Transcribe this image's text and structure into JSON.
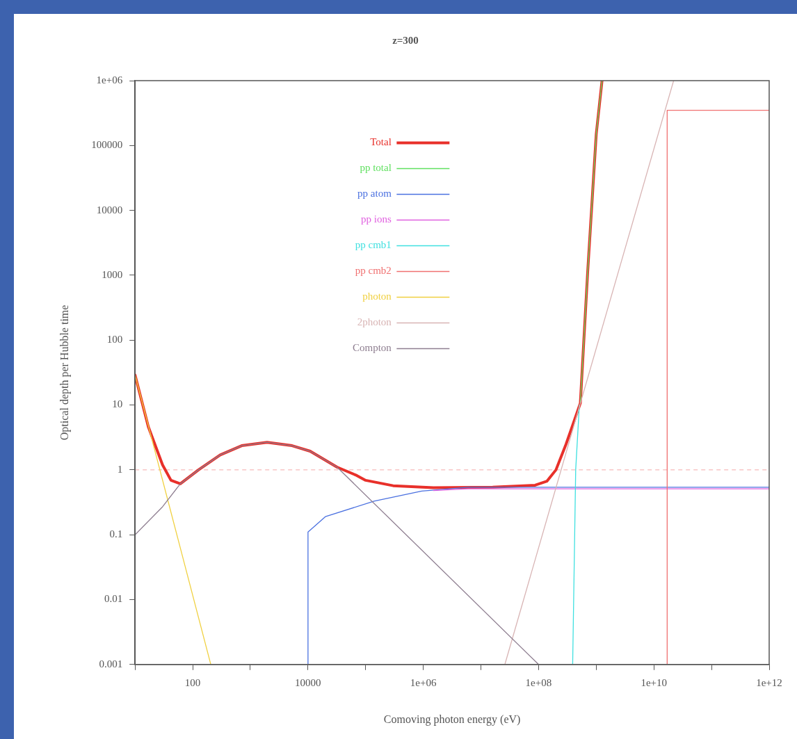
{
  "chart_data": {
    "type": "line",
    "title": "z=300",
    "xlabel": "Comoving photon energy (eV)",
    "ylabel": "Optical depth per Hubble time",
    "log": "xy",
    "grid": false,
    "legend": "top",
    "marker": "none",
    "line_style": "solid",
    "xlim": [
      10,
      1000000000000
    ],
    "ylim": [
      0.001,
      1000000
    ],
    "xticks": [
      {
        "value": 10,
        "label": null
      },
      100,
      {
        "value": 1000,
        "label": null
      },
      10000,
      {
        "value": 100000,
        "label": null
      },
      {
        "value": 1000000,
        "label": "1e+06"
      },
      {
        "value": 10000000,
        "label": null
      },
      {
        "value": 100000000,
        "label": "1e+08"
      },
      {
        "value": 1000000000,
        "label": null
      },
      {
        "value": 10000000000,
        "label": "1e+10"
      },
      {
        "value": 100000000000,
        "label": null
      },
      {
        "value": 1000000000000,
        "label": "1e+12"
      }
    ],
    "yticks": [
      0.001,
      0.01,
      0.1,
      1,
      10,
      100,
      1000,
      10000,
      100000,
      {
        "value": 1000000,
        "label": "1e+06"
      }
    ],
    "ref_lines": [
      {
        "axis": "y",
        "value": 1,
        "color": "#f4a8a8",
        "line_style": "dashed"
      }
    ],
    "series": [
      {
        "name": "Total",
        "color": "#e8302a",
        "x": [
          10,
          17,
          30,
          42,
          61,
          126,
          300,
          708,
          1950,
          5300,
          10900,
          32000,
          70000,
          100000,
          300000,
          1500000,
          16000000,
          87000000,
          140000000,
          200000000,
          300000000,
          530000000,
          710000000,
          1000000000,
          1260000000
        ],
        "values": [
          29,
          4.6,
          1.19,
          0.69,
          0.61,
          1.0,
          1.7,
          2.36,
          2.66,
          2.36,
          1.94,
          1.1,
          0.82,
          0.69,
          0.57,
          0.53,
          0.54,
          0.58,
          0.67,
          1.0,
          2.5,
          10.7,
          1120,
          150000,
          1000000
        ]
      },
      {
        "name": "pp total",
        "color": "#60e060",
        "x": [
          530000000,
          710000000,
          1000000000,
          1260000000
        ],
        "values": [
          10.7,
          1120,
          150000,
          1000000
        ]
      },
      {
        "name": "pp atom",
        "color": "#4a70e0",
        "x": [
          10000,
          10000,
          20000,
          140000,
          940000,
          6000000,
          1000000000000
        ],
        "values": [
          0.001,
          0.11,
          0.19,
          0.33,
          0.47,
          0.54,
          0.54
        ]
      },
      {
        "name": "pp ions",
        "color": "#e060e0",
        "x": [
          1500000,
          6000000,
          1000000000000
        ],
        "values": [
          0.48,
          0.51,
          0.51
        ]
      },
      {
        "name": "pp cmb1",
        "color": "#40e0e0",
        "x": [
          390000000,
          440000000,
          510000000
        ],
        "values": [
          0.001,
          1,
          10
        ]
      },
      {
        "name": "pp cmb2",
        "color": "#f07070",
        "x": [
          17000000000,
          17000000000,
          1000000000000
        ],
        "values": [
          0.001,
          350000,
          350000
        ]
      },
      {
        "name": "photon",
        "color": "#f0d040",
        "x": [
          10,
          206
        ],
        "values": [
          29,
          0.001
        ]
      },
      {
        "name": "2photon",
        "color": "#d8b4b4",
        "x": [
          26000000,
          22000000000
        ],
        "values": [
          0.001,
          1000000
        ]
      },
      {
        "name": "Compton",
        "color": "#8e7e90",
        "x": [
          10,
          30,
          61,
          126,
          300,
          708,
          1950,
          5300,
          10900,
          32000,
          100000000
        ],
        "values": [
          0.1,
          0.27,
          0.61,
          1.0,
          1.7,
          2.36,
          2.66,
          2.36,
          1.94,
          1.1,
          0.001
        ]
      }
    ]
  }
}
